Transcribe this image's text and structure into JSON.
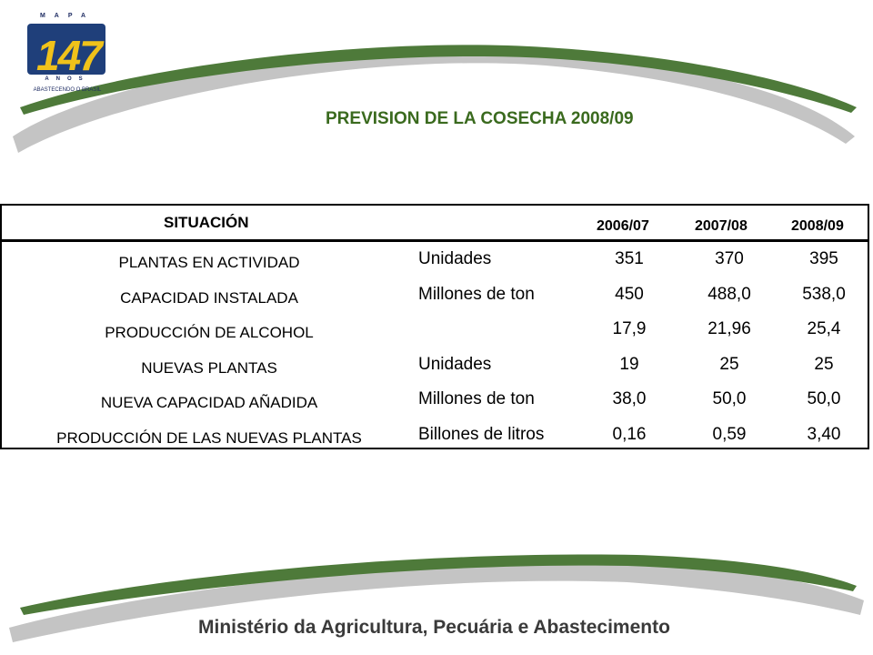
{
  "logo": {
    "top_text": "MAPA",
    "number": "147",
    "bottom_text": "ANOS",
    "tagline": "ABASTECENDO O BRASIL"
  },
  "title": "PREVISION DE LA COSECHA 2008/09",
  "table": {
    "header_situacion": "SITUACIÓN",
    "years": [
      "2006/07",
      "2007/08",
      "2008/09"
    ],
    "rows": [
      {
        "name": "PLANTAS EN ACTIVIDAD",
        "unit": "Unidades",
        "values": [
          "351",
          "370",
          "395"
        ]
      },
      {
        "name": "CAPACIDAD INSTALADA",
        "unit": "Millones de ton",
        "values": [
          "450",
          "488,0",
          "538,0"
        ]
      },
      {
        "name": "PRODUCCIÓN DE ALCOHOL",
        "unit": "",
        "values": [
          "17,9",
          "21,96",
          "25,4"
        ]
      },
      {
        "name": "NUEVAS PLANTAS",
        "unit": "Unidades",
        "values": [
          "19",
          "25",
          "25"
        ]
      },
      {
        "name": "NUEVA CAPACIDAD AÑADIDA",
        "unit": "Millones de ton",
        "values": [
          "38,0",
          "50,0",
          "50,0"
        ]
      },
      {
        "name": "PRODUCCIÓN DE LAS NUEVAS PLANTAS",
        "unit": "Billones de litros",
        "values": [
          "0,16",
          "0,59",
          "3,40"
        ]
      }
    ]
  },
  "footer": {
    "ministry": "Ministério da Agricultura, Pecuária e Abastecimento"
  },
  "colors": {
    "title_green": "#3a6a1e",
    "swoosh_green": "#4e7a3a",
    "swoosh_gray": "#b8b8b8"
  }
}
